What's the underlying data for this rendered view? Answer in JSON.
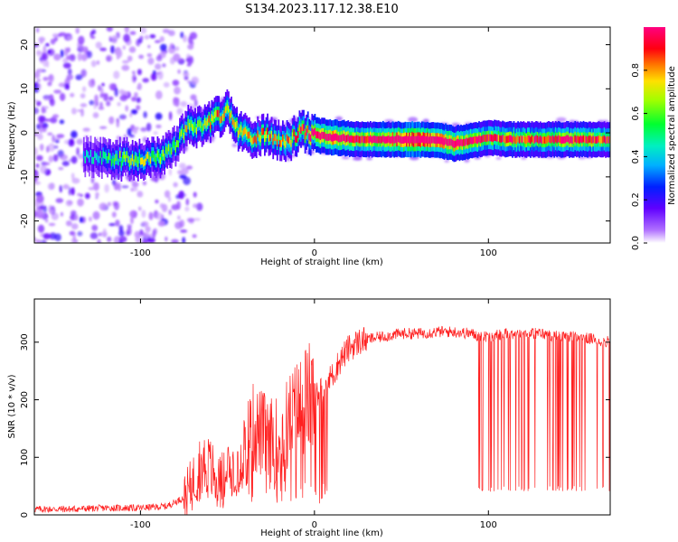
{
  "figure": {
    "title": "S134.2023.117.12.38.E10"
  },
  "colors": {
    "snr_line": "#ff2020",
    "spectrum_low": "#8000ff",
    "spectrum_high": "#ff0000"
  },
  "chart_data": [
    {
      "type": "heatmap",
      "xlabel": "Height of straight line (km)",
      "ylabel": "Frequency (Hz)",
      "xlim": [
        -161,
        170
      ],
      "ylim": [
        -25,
        24
      ],
      "xticks": [
        -100,
        0,
        100
      ],
      "xtick_labels": [
        "-100",
        "0",
        "100"
      ],
      "yticks": [
        -20,
        -10,
        0,
        10,
        20
      ],
      "ytick_labels": [
        "-20",
        "-10",
        "0",
        "10",
        "20"
      ],
      "colorbar": {
        "label": "Normalized spectral amplitude",
        "range": [
          0,
          1
        ],
        "ticks": [
          0.0,
          0.2,
          0.4,
          0.6,
          0.8
        ],
        "tick_labels": [
          "0.0",
          "0.2",
          "0.4",
          "0.6",
          "0.8"
        ],
        "colormap": "rainbow (purple → blue → cyan → green → yellow → red → magenta)"
      },
      "ridge": [
        {
          "x": -130,
          "freq": -5.5,
          "amp": 0.25
        },
        {
          "x": -115,
          "freq": -6.0,
          "amp": 0.35
        },
        {
          "x": -100,
          "freq": -6.0,
          "amp": 0.4
        },
        {
          "x": -88,
          "freq": -5.5,
          "amp": 0.4
        },
        {
          "x": -80,
          "freq": -3.0,
          "amp": 0.35
        },
        {
          "x": -72,
          "freq": 2.0,
          "amp": 0.45
        },
        {
          "x": -65,
          "freq": 1.0,
          "amp": 0.4
        },
        {
          "x": -58,
          "freq": 3.0,
          "amp": 0.5
        },
        {
          "x": -50,
          "freq": 5.0,
          "amp": 0.45
        },
        {
          "x": -44,
          "freq": 0.0,
          "amp": 0.5
        },
        {
          "x": -35,
          "freq": -1.0,
          "amp": 0.45
        },
        {
          "x": -28,
          "freq": 0.0,
          "amp": 0.5
        },
        {
          "x": -22,
          "freq": -1.5,
          "amp": 0.45
        },
        {
          "x": -15,
          "freq": -2.0,
          "amp": 0.5
        },
        {
          "x": -8,
          "freq": 0.5,
          "amp": 0.55
        },
        {
          "x": 0,
          "freq": -0.5,
          "amp": 0.65
        },
        {
          "x": 10,
          "freq": -1.0,
          "amp": 0.75
        },
        {
          "x": 25,
          "freq": -1.5,
          "amp": 0.6
        },
        {
          "x": 40,
          "freq": -1.5,
          "amp": 0.7
        },
        {
          "x": 55,
          "freq": -1.5,
          "amp": 0.85
        },
        {
          "x": 70,
          "freq": -1.5,
          "amp": 0.75
        },
        {
          "x": 80,
          "freq": -2.5,
          "amp": 0.7
        },
        {
          "x": 95,
          "freq": -1.5,
          "amp": 0.6
        },
        {
          "x": 100,
          "freq": -1.0,
          "amp": 0.55
        },
        {
          "x": 110,
          "freq": -1.5,
          "amp": 0.6
        },
        {
          "x": 125,
          "freq": -1.5,
          "amp": 0.55
        },
        {
          "x": 140,
          "freq": -1.5,
          "amp": 0.6
        },
        {
          "x": 155,
          "freq": -1.5,
          "amp": 0.6
        },
        {
          "x": 168,
          "freq": -1.5,
          "amp": 0.55
        }
      ]
    },
    {
      "type": "line",
      "xlabel": "Height of straight line (km)",
      "ylabel": "SNR (10 * v/v)",
      "xlim": [
        -161,
        170
      ],
      "ylim": [
        0,
        375
      ],
      "xticks": [
        -100,
        0,
        100
      ],
      "xtick_labels": [
        "-100",
        "0",
        "100"
      ],
      "yticks": [
        0,
        100,
        200,
        300
      ],
      "ytick_labels": [
        "0",
        "100",
        "200",
        "300"
      ],
      "series": [
        {
          "x": [
            -161,
            -140,
            -120,
            -100,
            -85,
            -75,
            -70,
            -65,
            -60,
            -55,
            -50,
            -45,
            -40,
            -35,
            -30,
            -25,
            -20,
            -15,
            -10,
            -5,
            0,
            5,
            10,
            15,
            20,
            25,
            30,
            40,
            50,
            60,
            70,
            80,
            90,
            95,
            100,
            110,
            120,
            130,
            140,
            150,
            160,
            170
          ],
          "values": [
            10,
            10,
            12,
            12,
            15,
            30,
            55,
            90,
            80,
            55,
            70,
            80,
            120,
            150,
            140,
            130,
            130,
            160,
            180,
            200,
            205,
            220,
            240,
            270,
            290,
            300,
            305,
            310,
            315,
            315,
            318,
            318,
            315,
            310,
            310,
            315,
            315,
            315,
            310,
            310,
            305,
            300
          ]
        }
      ]
    }
  ]
}
